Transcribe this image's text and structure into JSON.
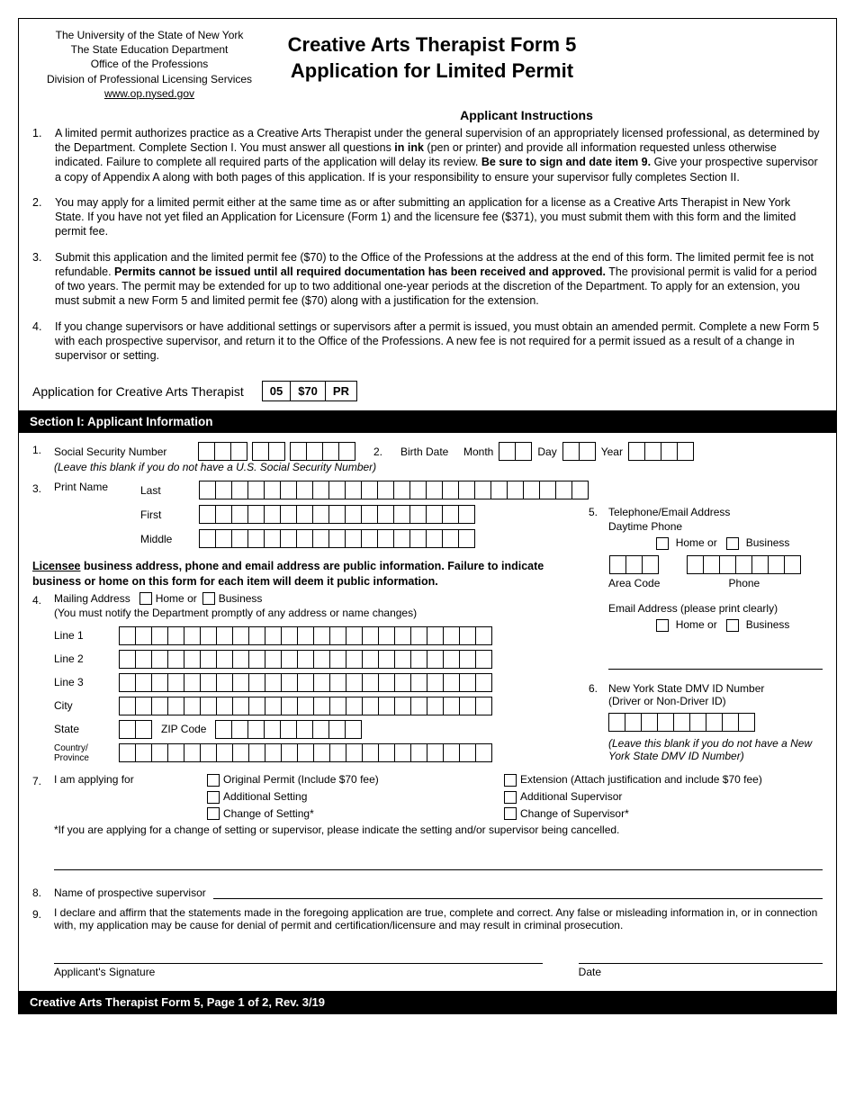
{
  "header": {
    "org1": "The University of the State of New York",
    "org2": "The State Education Department",
    "org3": "Office of the Professions",
    "org4": "Division of Professional Licensing Services",
    "url": "www.op.nysed.gov",
    "title1": "Creative Arts Therapist Form 5",
    "title2": "Application for Limited Permit"
  },
  "instructions": {
    "heading": "Applicant Instructions",
    "items": [
      {
        "n": "1.",
        "pre": "A limited permit authorizes practice as a Creative Arts Therapist under the general supervision of an appropriately licensed professional, as determined by the Department. Complete Section I. You must answer all questions ",
        "b1": "in ink",
        "mid": " (pen or printer) and provide all information requested unless otherwise indicated. Failure to complete all required parts of the application will delay its review. ",
        "b2": "Be sure to sign and date item 9.",
        "post": " Give your prospective supervisor a copy of Appendix A along with both pages of this application. If is your responsibility to ensure your supervisor fully completes Section II."
      },
      {
        "n": "2.",
        "text": "You may apply for a limited permit either at the same time as or after submitting an application for a license as a Creative Arts Therapist in New York State. If you have not yet filed an Application for Licensure (Form 1) and the licensure fee ($371), you must submit them with this form and the limited permit fee."
      },
      {
        "n": "3.",
        "pre": "Submit this application and the limited permit fee ($70) to the Office of the Professions at the address at the end of this form. The limited permit fee is not refundable. ",
        "b1": "Permits cannot be issued until all required documentation has been received and approved.",
        "post": " The provisional permit is valid for a period of two years. The permit may be extended for up to two additional one-year periods at the discretion of the Department. To apply for an extension, you must submit a new Form 5 and limited permit fee ($70) along with a justification for the extension."
      },
      {
        "n": "4.",
        "text": "If you change supervisors or have additional settings or supervisors after a permit is issued, you must obtain an amended permit. Complete a new Form 5 with each prospective supervisor, and return it to the Office of the Professions. A new fee is not required for a permit issued as a result of a change in supervisor or setting."
      }
    ]
  },
  "appLine": {
    "label": "Application for Creative Arts Therapist",
    "codes": [
      "05",
      "$70",
      "PR"
    ]
  },
  "section1": {
    "title": "Section I: Applicant Information"
  },
  "q1": {
    "n": "1.",
    "label": "Social Security Number",
    "note": "(Leave this blank if you do not have a U.S. Social Security Number)"
  },
  "q2": {
    "n": "2.",
    "label": "Birth Date",
    "month": "Month",
    "day": "Day",
    "year": "Year"
  },
  "q3": {
    "n": "3.",
    "label": "Print Name",
    "last": "Last",
    "first": "First",
    "middle": "Middle"
  },
  "publicInfo": {
    "u": "Licensee",
    "rest": " business address, phone and email address are public information. Failure to indicate business or home on this form for each item will deem it public information."
  },
  "q4": {
    "n": "4.",
    "label": "Mailing Address",
    "home": "Home or",
    "business": "Business",
    "sub": "(You must notify the Department promptly of any address or name changes)",
    "line1": "Line 1",
    "line2": "Line 2",
    "line3": "Line 3",
    "city": "City",
    "state": "State",
    "zip": "ZIP Code",
    "country": "Country/\nProvince"
  },
  "q5": {
    "n": "5.",
    "label": "Telephone/Email Address",
    "daytime": "Daytime Phone",
    "home": "Home or",
    "business": "Business",
    "area": "Area Code",
    "phone": "Phone",
    "email": "Email Address (please print clearly)"
  },
  "q6": {
    "n": "6.",
    "label": "New York State DMV ID Number",
    "sub": "(Driver or Non-Driver ID)",
    "note": "(Leave this blank if you do not have a New York State DMV ID Number)"
  },
  "q7": {
    "n": "7.",
    "label": "I am applying for",
    "opts": [
      [
        "Original Permit (Include $70 fee)",
        "Extension (Attach justification and include $70 fee)"
      ],
      [
        "Additional Setting",
        "Additional Supervisor"
      ],
      [
        "Change of Setting*",
        "Change of Supervisor*"
      ]
    ],
    "note": "*If you are applying for a change of setting or supervisor, please indicate the setting and/or supervisor being cancelled."
  },
  "q8": {
    "n": "8.",
    "label": "Name of prospective supervisor"
  },
  "q9": {
    "n": "9.",
    "text": "I declare and affirm that the statements made in the foregoing application are true, complete and correct. Any false or misleading information in, or in connection with, my application may be cause for denial of permit and certification/licensure and may result in criminal prosecution.",
    "sig": "Applicant's Signature",
    "date": "Date"
  },
  "footer": "Creative Arts Therapist Form 5, Page 1 of 2, Rev. 3/19"
}
